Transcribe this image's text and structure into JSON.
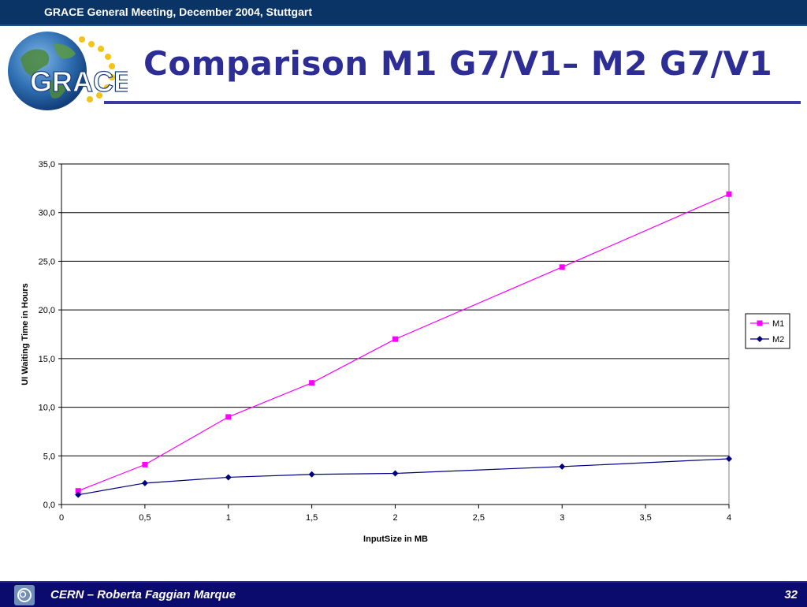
{
  "header": {
    "meeting": "GRACE General Meeting, December 2004, Stuttgart"
  },
  "logo": {
    "text": "GRACE"
  },
  "slide": {
    "title": "Comparison M1 G7/V1– M2 G7/V1"
  },
  "footer": {
    "author": "CERN – Roberta Faggian Marque",
    "page": "32"
  },
  "colors": {
    "header_bar": "#0b3466",
    "footer_bar": "#0b0b6e",
    "title": "#2d2d96",
    "m1": "#ff00ff",
    "m2": "#000080"
  },
  "chart_data": {
    "type": "line",
    "xlabel": "InputSize in MB",
    "ylabel": "UI Waiting Time in Hours",
    "xlim": [
      0,
      4
    ],
    "ylim": [
      0,
      35
    ],
    "x_ticks": [
      "0",
      "0,5",
      "1",
      "1,5",
      "2",
      "2,5",
      "3",
      "3,5",
      "4"
    ],
    "y_ticks": [
      "0,0",
      "5,0",
      "10,0",
      "15,0",
      "20,0",
      "25,0",
      "30,0",
      "35,0"
    ],
    "grid": "horizontal",
    "legend": "right",
    "series": [
      {
        "name": "M1",
        "marker": "square",
        "color": "#ff00ff",
        "points": [
          [
            0.1,
            1.4
          ],
          [
            0.5,
            4.1
          ],
          [
            1,
            9.0
          ],
          [
            1.5,
            12.5
          ],
          [
            2,
            17.0
          ],
          [
            3,
            24.4
          ],
          [
            4,
            31.9
          ]
        ]
      },
      {
        "name": "M2",
        "marker": "diamond",
        "color": "#000080",
        "points": [
          [
            0.1,
            1.0
          ],
          [
            0.5,
            2.2
          ],
          [
            1,
            2.8
          ],
          [
            1.5,
            3.1
          ],
          [
            2,
            3.2
          ],
          [
            3,
            3.9
          ],
          [
            4,
            4.7
          ]
        ]
      }
    ]
  }
}
